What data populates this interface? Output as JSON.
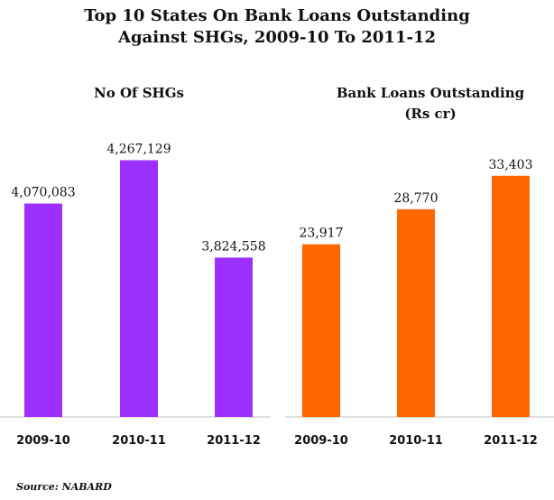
{
  "title_lines": [
    "Top 10 States On Bank Loans Outstanding",
    "Against SHGs, 2009-10 To 2011-12"
  ],
  "source": "Source: NABARD",
  "colors": {
    "shgs": "#9b30ff",
    "loans": "#ff6600"
  },
  "chart_data": [
    {
      "type": "bar",
      "title_lines": [
        "No Of SHGs"
      ],
      "categories": [
        "2009-10",
        "2010-11",
        "2011-12"
      ],
      "values": [
        4070083,
        4267129,
        3824558
      ],
      "value_labels": [
        "4,070,083",
        "4,267,129",
        "3,824,558"
      ],
      "ylim": [
        3100000,
        4380000
      ],
      "grid": false,
      "legend": "none"
    },
    {
      "type": "bar",
      "title_lines": [
        "Bank Loans Outstanding",
        "(Rs cr)"
      ],
      "categories": [
        "2009-10",
        "2010-11",
        "2011-12"
      ],
      "values": [
        23917,
        28770,
        33403
      ],
      "value_labels": [
        "23,917",
        "28,770",
        "33,403"
      ],
      "ylim": [
        0,
        39000
      ],
      "grid": false,
      "legend": "none"
    }
  ]
}
